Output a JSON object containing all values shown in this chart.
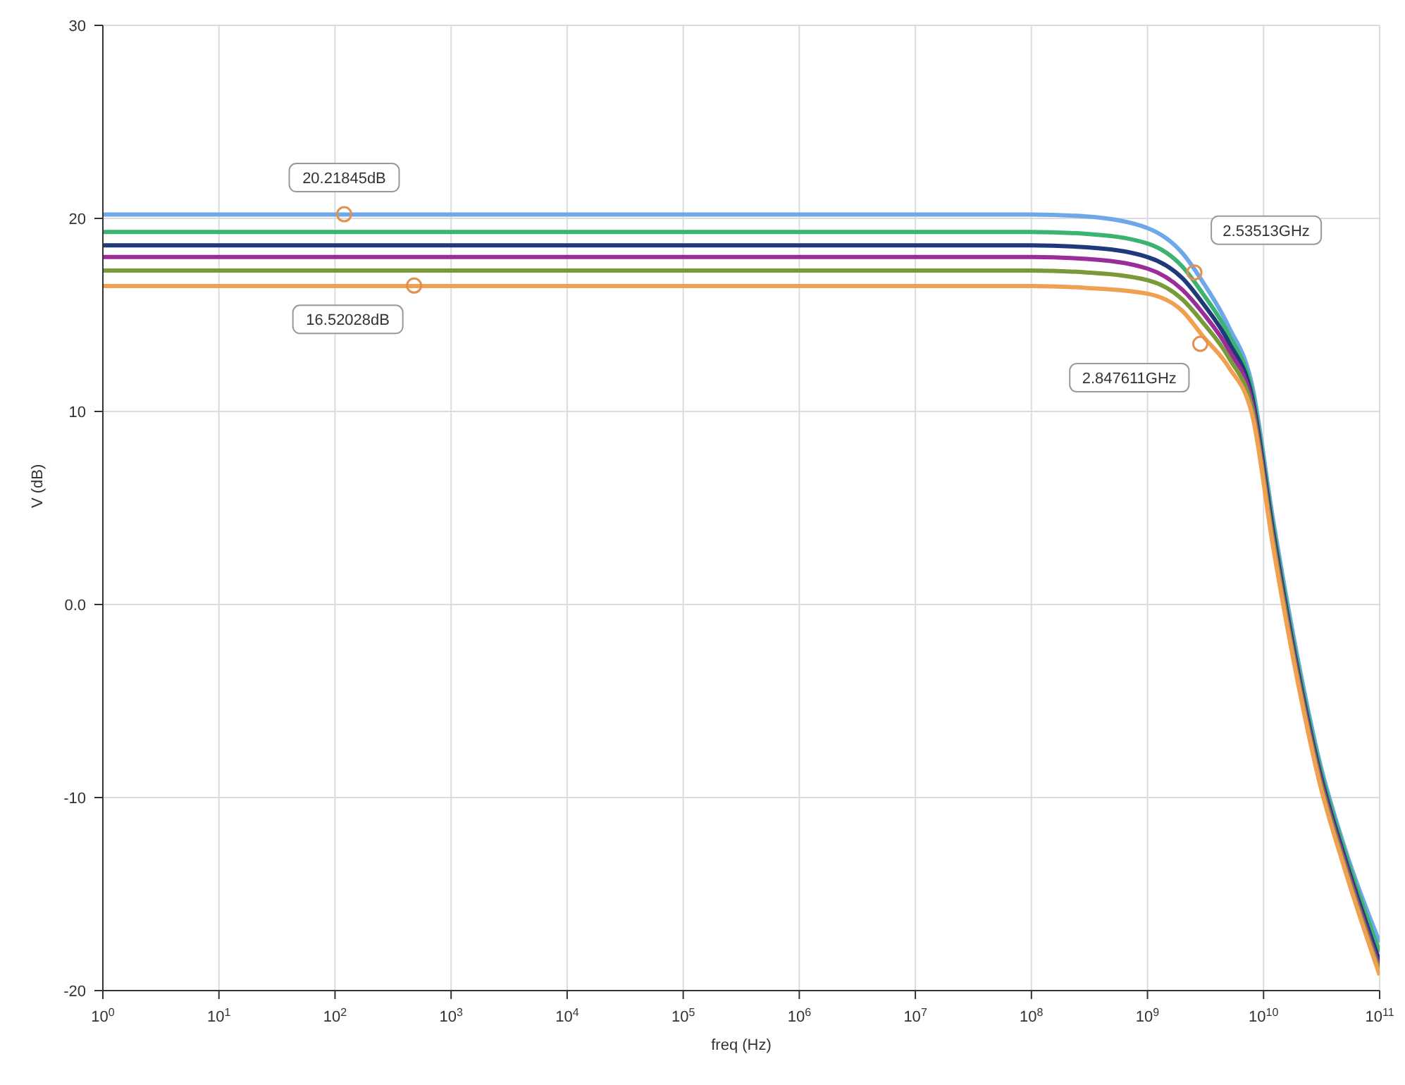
{
  "chart_data": {
    "type": "line",
    "xlabel": "freq (Hz)",
    "ylabel": "V (dB)",
    "log": "x",
    "grid": true,
    "legend": false,
    "x": [
      1,
      100000000,
      300000000,
      1000000000,
      2000000000,
      3000000000,
      5000000000,
      8000000000,
      12000000000,
      20000000000,
      30000000000,
      50000000000,
      100000000000
    ],
    "series": [
      {
        "color": "#6fa8e8",
        "values": [
          20.2,
          20.2,
          20.1,
          19.5,
          18.2,
          16.7,
          14.4,
          11.3,
          4.5,
          -3.0,
          -8.0,
          -12.6,
          -17.5
        ]
      },
      {
        "color": "#3cb371",
        "values": [
          19.3,
          19.3,
          19.2,
          18.7,
          17.5,
          16.1,
          14.0,
          11.0,
          4.2,
          -3.3,
          -8.2,
          -12.8,
          -18.0
        ]
      },
      {
        "color": "#1f3a7a",
        "values": [
          18.6,
          18.6,
          18.5,
          18.0,
          16.9,
          15.6,
          13.6,
          10.7,
          3.9,
          -3.6,
          -8.5,
          -13.1,
          -18.5
        ]
      },
      {
        "color": "#9b2d9b",
        "values": [
          18.0,
          18.0,
          17.9,
          17.4,
          16.3,
          15.1,
          13.2,
          10.4,
          3.6,
          -3.8,
          -8.7,
          -13.3,
          -18.8
        ]
      },
      {
        "color": "#7a9a3a",
        "values": [
          17.3,
          17.3,
          17.2,
          16.8,
          15.8,
          14.6,
          12.8,
          10.1,
          3.4,
          -4.0,
          -8.9,
          -13.5,
          -19.0
        ]
      },
      {
        "color": "#f0a050",
        "values": [
          16.5,
          16.5,
          16.4,
          16.1,
          15.2,
          13.9,
          12.3,
          9.8,
          3.1,
          -4.2,
          -9.1,
          -13.7,
          -19.2
        ]
      }
    ],
    "xlim": [
      1,
      100000000000
    ],
    "xticks": [
      {
        "value": 1,
        "label": "10$^{0}$"
      },
      {
        "value": 10,
        "label": "10$^{1}$"
      },
      {
        "value": 100,
        "label": "10$^{2}$"
      },
      {
        "value": 1000,
        "label": "10$^{3}$"
      },
      {
        "value": 10000,
        "label": "10$^{4}$"
      },
      {
        "value": 100000,
        "label": "10$^{5}$"
      },
      {
        "value": 1000000,
        "label": "10$^{6}$"
      },
      {
        "value": 10000000,
        "label": "10$^{7}$"
      },
      {
        "value": 100000000,
        "label": "10$^{8}$"
      },
      {
        "value": 1000000000,
        "label": "10$^{9}$"
      },
      {
        "value": 10000000000,
        "label": "10$^{10}$"
      },
      {
        "value": 100000000000,
        "label": "10$^{11}$"
      }
    ],
    "ylim": [
      -20,
      30
    ],
    "yticks": [
      -20,
      -10,
      {
        "value": 0,
        "label": "0.0"
      },
      10,
      20,
      30
    ],
    "annotations": [
      {
        "text": "20.21845dB",
        "x": 120,
        "y": 20.21845
      },
      {
        "text": "16.52028dB",
        "x": 480,
        "y": 16.52028
      },
      {
        "text": "2.53513GHz",
        "x": 2535130000,
        "y": 17.2
      },
      {
        "text": "2.847611GHz",
        "x": 2847611000,
        "y": 13.5
      }
    ]
  }
}
